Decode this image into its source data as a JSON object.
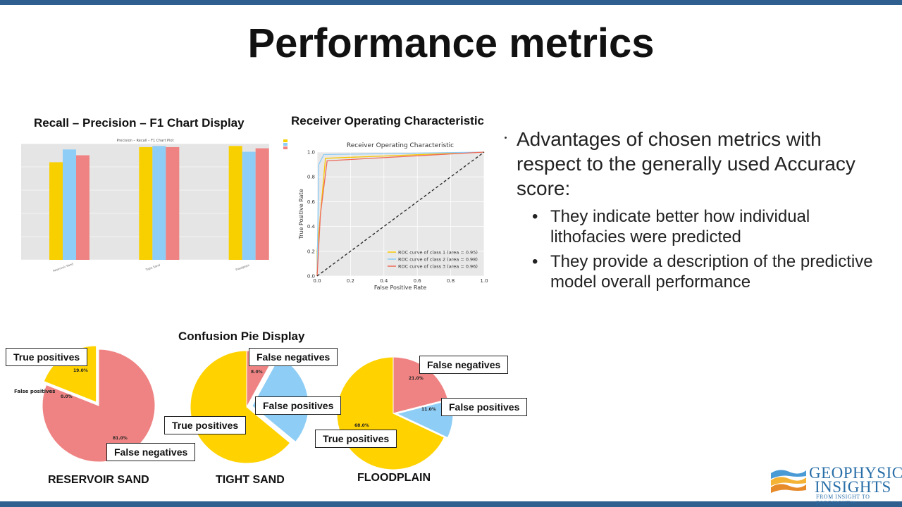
{
  "slide_title": "Performance metrics",
  "bar_chart": {
    "heading": "Recall – Precision – F1 Chart Display",
    "inner_title": "Precision – Recall – F1 Chart Plot"
  },
  "roc_chart": {
    "heading": "Receiver Operating Characteristic",
    "inner_title": "Receiver Operating Characteristic",
    "ylabel": "True Positive Rate",
    "xlabel": "False Positive Rate",
    "xticks": [
      "0.0",
      "0.2",
      "0.4",
      "0.6",
      "0.8",
      "1.0"
    ],
    "yticks": [
      "0.0",
      "0.2",
      "0.4",
      "0.6",
      "0.8",
      "1.0"
    ],
    "legend": [
      "ROC curve of class 1 (area = 0.95)",
      "ROC curve of class 2 (area = 0.98)",
      "ROC curve of class 3 (area = 0.96)"
    ]
  },
  "bullets": {
    "main": "Advantages of chosen metrics with respect to the generally used Accuracy score:",
    "sub1": "They indicate better how individual lithofacies were predicted",
    "sub2": "They provide a description of the predictive model overall performance"
  },
  "pie_section": {
    "heading": "Confusion Pie Display",
    "pies": [
      {
        "name": "RESERVOIR SAND",
        "pct_tp": "19.0%",
        "pct_fp": "0.0%",
        "pct_fn": "81.0%",
        "small_fp": "False positives",
        "callout_tp": "True positives",
        "callout_fn": "False negatives"
      },
      {
        "name": "TIGHT SAND",
        "pct_fn": "8.0%",
        "callout_fn": "False negatives",
        "callout_fp": "False positives",
        "callout_tp": "True positives"
      },
      {
        "name": "FLOODPLAIN",
        "pct_fn": "21.0%",
        "pct_fp": "11.0%",
        "pct_tp": "68.0%",
        "callout_fn": "False negatives",
        "callout_fp": "False positives",
        "callout_tp": "True positives"
      }
    ]
  },
  "logo": {
    "line1": "GEOPHYSICAL",
    "line2": "INSIGHTS",
    "tagline": "FROM INSIGHT TO FORESIGHT™"
  },
  "chart_data": [
    {
      "type": "bar",
      "title": "Precision – Recall – F1 Chart Plot",
      "categories": [
        "Reservoir Sand",
        "Tight Sand",
        "Floodplain"
      ],
      "series": [
        {
          "name": "Precision",
          "color": "#f8d000",
          "values": [
            0.84,
            0.97,
            0.98
          ]
        },
        {
          "name": "Recall",
          "color": "#8ecdf5",
          "values": [
            0.95,
            0.98,
            0.93
          ]
        },
        {
          "name": "F1",
          "color": "#ef8383",
          "values": [
            0.9,
            0.97,
            0.96
          ]
        }
      ],
      "ylim": [
        0,
        1
      ]
    },
    {
      "type": "line",
      "title": "Receiver Operating Characteristic",
      "xlabel": "False Positive Rate",
      "ylabel": "True Positive Rate",
      "xlim": [
        0,
        1
      ],
      "ylim": [
        0,
        1
      ],
      "series": [
        {
          "name": "ROC curve of class 1 (area = 0.95)",
          "color": "#f7c600",
          "x": [
            0,
            0.0,
            0.05,
            1.0
          ],
          "y": [
            0,
            0.2,
            0.95,
            1.0
          ]
        },
        {
          "name": "ROC curve of class 2 (area = 0.98)",
          "color": "#8ecdf5",
          "x": [
            0,
            0.01,
            0.04,
            1.0
          ],
          "y": [
            0,
            0.9,
            0.98,
            1.0
          ]
        },
        {
          "name": "ROC curve of class 3 (area = 0.96)",
          "color": "#ef6a5a",
          "x": [
            0,
            0.02,
            0.06,
            1.0
          ],
          "y": [
            0,
            0.5,
            0.93,
            1.0
          ]
        },
        {
          "name": "chance",
          "color": "#222222",
          "x": [
            0,
            1
          ],
          "y": [
            0,
            1
          ]
        }
      ]
    },
    {
      "type": "pie",
      "title": "RESERVOIR SAND",
      "labels": [
        "True positives",
        "False positives",
        "False negatives"
      ],
      "values": [
        19,
        0,
        81
      ],
      "colors": [
        "#ffd200",
        "#8ecdf5",
        "#ef8383"
      ]
    },
    {
      "type": "pie",
      "title": "TIGHT SAND",
      "labels": [
        "True positives",
        "False negatives",
        "False positives"
      ],
      "values": [
        64,
        8,
        28
      ],
      "colors": [
        "#ffd200",
        "#ef8383",
        "#8ecdf5"
      ]
    },
    {
      "type": "pie",
      "title": "FLOODPLAIN",
      "labels": [
        "True positives",
        "False negatives",
        "False positives"
      ],
      "values": [
        68,
        21,
        11
      ],
      "colors": [
        "#ffd200",
        "#ef8383",
        "#8ecdf5"
      ]
    }
  ]
}
